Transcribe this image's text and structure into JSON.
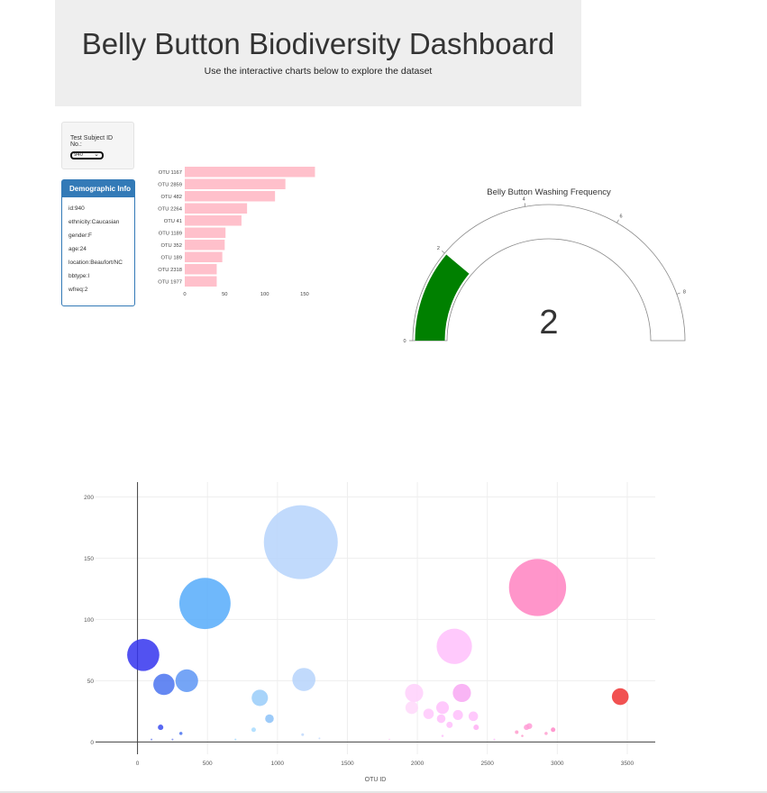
{
  "header": {
    "title": "Belly Button Biodiversity Dashboard",
    "subtitle": "Use the interactive charts below to explore the dataset"
  },
  "selector": {
    "label": "Test Subject ID No.:",
    "value": "940",
    "chevron_icon": "chevron-down-icon"
  },
  "demographics": {
    "title": "Demographic Info",
    "items": [
      "id:940",
      "ethnicity:Caucasian",
      "gender:F",
      "age:24",
      "location:Beaufort/NC",
      "bbtype:I",
      "wfreq:2"
    ]
  },
  "colors": {
    "bar": "#ffc0cb",
    "gauge_bar": "#008000",
    "panel": "#337ab7",
    "jumbotron_bg": "#eeeeee"
  },
  "chart_data": [
    {
      "type": "bar",
      "orientation": "horizontal",
      "categories": [
        "OTU 1167",
        "OTU 2859",
        "OTU 482",
        "OTU 2264",
        "OTU 41",
        "OTU 1189",
        "OTU 352",
        "OTU 189",
        "OTU 2318",
        "OTU 1977"
      ],
      "values": [
        163,
        126,
        113,
        78,
        71,
        51,
        50,
        47,
        40,
        40
      ],
      "xticks": [
        0,
        50,
        100,
        150
      ],
      "xlim": [
        0,
        167
      ]
    },
    {
      "type": "gauge",
      "title": "Belly Button Washing Frequency",
      "value": 2,
      "range": [
        0,
        9
      ],
      "ticks": [
        0,
        2,
        4,
        6,
        8
      ]
    },
    {
      "type": "scatter",
      "bubble": true,
      "xlabel": "OTU ID",
      "xlim": [
        -300,
        3700
      ],
      "ylim": [
        -10,
        212
      ],
      "xticks": [
        0,
        500,
        1000,
        1500,
        2000,
        2500,
        3000,
        3500
      ],
      "yticks": [
        0,
        50,
        100,
        150,
        200
      ],
      "points": [
        {
          "x": 1167,
          "y": 163,
          "color": "#b6d4fb"
        },
        {
          "x": 2859,
          "y": 126,
          "color": "#ff83c1"
        },
        {
          "x": 482,
          "y": 113,
          "color": "#56acfa"
        },
        {
          "x": 2264,
          "y": 78,
          "color": "#ffc0fb"
        },
        {
          "x": 41,
          "y": 71,
          "color": "#3434ef"
        },
        {
          "x": 1189,
          "y": 51,
          "color": "#b6d4fb"
        },
        {
          "x": 352,
          "y": 50,
          "color": "#5d95f4"
        },
        {
          "x": 189,
          "y": 47,
          "color": "#4a73f0"
        },
        {
          "x": 2318,
          "y": 40,
          "color": "#f8a8f3"
        },
        {
          "x": 1977,
          "y": 40,
          "color": "#ffd0fb"
        },
        {
          "x": 3450,
          "y": 37,
          "color": "#ef3333"
        },
        {
          "x": 874,
          "y": 36,
          "color": "#99ccf9"
        },
        {
          "x": 1960,
          "y": 28,
          "color": "#ffd8fa"
        },
        {
          "x": 2180,
          "y": 28,
          "color": "#ffc0fb"
        },
        {
          "x": 2080,
          "y": 23,
          "color": "#ffc8fb"
        },
        {
          "x": 2290,
          "y": 22,
          "color": "#ffc0fb"
        },
        {
          "x": 2400,
          "y": 21,
          "color": "#ffc0fb"
        },
        {
          "x": 2170,
          "y": 19,
          "color": "#ffc0fb"
        },
        {
          "x": 943,
          "y": 19,
          "color": "#8cc2f8"
        },
        {
          "x": 2230,
          "y": 14,
          "color": "#ffc0fb"
        },
        {
          "x": 2420,
          "y": 12,
          "color": "#ffb0f5"
        },
        {
          "x": 2800,
          "y": 13,
          "color": "#ff9cd6"
        },
        {
          "x": 2780,
          "y": 12,
          "color": "#ff9cd6"
        },
        {
          "x": 165,
          "y": 12,
          "color": "#3b4ef0"
        },
        {
          "x": 2970,
          "y": 10,
          "color": "#ff88c8"
        },
        {
          "x": 830,
          "y": 10,
          "color": "#a8dcff"
        },
        {
          "x": 2710,
          "y": 8,
          "color": "#ff9ccc"
        },
        {
          "x": 310,
          "y": 7,
          "color": "#4a73f0"
        },
        {
          "x": 2920,
          "y": 7,
          "color": "#ffa0d0"
        },
        {
          "x": 1180,
          "y": 6,
          "color": "#c0d8fb"
        },
        {
          "x": 2750,
          "y": 5,
          "color": "#ff9ccc"
        },
        {
          "x": 2180,
          "y": 5,
          "color": "#ffc0fb"
        },
        {
          "x": 1300,
          "y": 3,
          "color": "#c8dcfb"
        },
        {
          "x": 100,
          "y": 2,
          "color": "#7a8cf0"
        },
        {
          "x": 250,
          "y": 2,
          "color": "#7a8cf0"
        },
        {
          "x": 700,
          "y": 2,
          "color": "#a8dcff"
        },
        {
          "x": 1800,
          "y": 2,
          "color": "#ffd8fa"
        },
        {
          "x": 2550,
          "y": 2,
          "color": "#ffc0fb"
        }
      ]
    }
  ]
}
